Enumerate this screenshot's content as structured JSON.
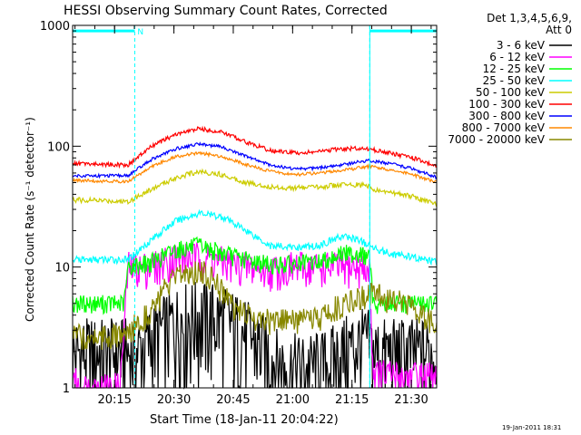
{
  "chart_data": {
    "type": "line",
    "title": "HESSI Observing Summary Count Rates, Corrected",
    "xlabel": "Start Time (18-Jan-11 20:04:22)",
    "ylabel": "Corrected Count Rate (s⁻¹ detector⁻¹)",
    "yscale": "log",
    "ylim": [
      1,
      1000
    ],
    "xlim_minutes": [
      0,
      92
    ],
    "x_ticks": [
      {
        "label": "20:15",
        "min": 10.6
      },
      {
        "label": "20:30",
        "min": 25.6
      },
      {
        "label": "20:45",
        "min": 40.6
      },
      {
        "label": "21:00",
        "min": 55.6
      },
      {
        "label": "21:15",
        "min": 70.6
      },
      {
        "label": "21:30",
        "min": 85.6
      }
    ],
    "y_ticks": [
      {
        "label": "1",
        "value": 1
      },
      {
        "label": "10",
        "value": 10
      },
      {
        "label": "100",
        "value": 100
      },
      {
        "label": "1000",
        "value": 1000
      }
    ],
    "legend_header": [
      "Det 1,3,4,5,6,9,",
      "Att 0"
    ],
    "legend_position": "right",
    "timestamp": "19-Jan-2011 18:31",
    "annotation": "N",
    "night_markers_minutes": [
      15.7,
      75.1
    ],
    "night_bars_minutes": [
      [
        0,
        15.7
      ],
      [
        75.1,
        92
      ]
    ],
    "night_bar_level": 900,
    "series": [
      {
        "name": "3 - 6 keV",
        "color": "#000000",
        "values": [
          [
            0,
            2.0
          ],
          [
            10,
            2.0
          ],
          [
            16,
            2.0
          ],
          [
            20,
            2.6
          ],
          [
            24,
            3.3
          ],
          [
            28,
            3.9
          ],
          [
            32,
            4.1
          ],
          [
            36,
            4.0
          ],
          [
            40,
            3.5
          ],
          [
            44,
            2.8
          ],
          [
            48,
            2.2
          ],
          [
            52,
            1.6
          ],
          [
            56,
            1.5
          ],
          [
            60,
            1.5
          ],
          [
            64,
            1.6
          ],
          [
            68,
            2.0
          ],
          [
            72,
            2.4
          ],
          [
            75,
            2.4
          ],
          [
            76,
            2.0
          ],
          [
            80,
            2.0
          ],
          [
            85,
            2.0
          ],
          [
            88,
            2.0
          ],
          [
            92,
            2.0
          ]
        ]
      },
      {
        "name": "6 - 12 keV",
        "color": "#ff00ff",
        "values": [
          [
            0,
            1.5
          ],
          [
            1,
            1.0
          ],
          [
            12,
            1.0
          ],
          [
            14,
            10.0
          ],
          [
            20,
            10.0
          ],
          [
            26,
            12.0
          ],
          [
            32,
            12.0
          ],
          [
            38,
            11.0
          ],
          [
            44,
            10.0
          ],
          [
            50,
            9.5
          ],
          [
            56,
            10.0
          ],
          [
            62,
            10.0
          ],
          [
            68,
            10.0
          ],
          [
            72,
            10.0
          ],
          [
            75,
            9.0
          ],
          [
            76,
            1.3
          ],
          [
            92,
            1.2
          ]
        ]
      },
      {
        "name": "12 - 25 keV",
        "color": "#00ff00",
        "values": [
          [
            0,
            5.0
          ],
          [
            13,
            5.0
          ],
          [
            14,
            10.0
          ],
          [
            20,
            11.0
          ],
          [
            26,
            14.0
          ],
          [
            32,
            15.0
          ],
          [
            38,
            13.0
          ],
          [
            44,
            11.5
          ],
          [
            50,
            10.5
          ],
          [
            56,
            10.5
          ],
          [
            62,
            11.0
          ],
          [
            68,
            13.0
          ],
          [
            72,
            13.0
          ],
          [
            75,
            12.0
          ],
          [
            76,
            5.0
          ],
          [
            88,
            5.0
          ],
          [
            92,
            5.0
          ]
        ]
      },
      {
        "name": "25 - 50 keV",
        "color": "#00ffff",
        "values": [
          [
            0,
            11.5
          ],
          [
            14,
            11.5
          ],
          [
            20,
            17.0
          ],
          [
            26,
            24.0
          ],
          [
            32,
            28.0
          ],
          [
            38,
            26.0
          ],
          [
            44,
            20.0
          ],
          [
            50,
            15.0
          ],
          [
            56,
            14.5
          ],
          [
            62,
            15.0
          ],
          [
            68,
            18.0
          ],
          [
            72,
            17.0
          ],
          [
            75,
            15.0
          ],
          [
            80,
            13.0
          ],
          [
            86,
            12.0
          ],
          [
            92,
            11.0
          ]
        ]
      },
      {
        "name": "50 - 100 keV",
        "color": "#cccc00",
        "values": [
          [
            0,
            36
          ],
          [
            14,
            35
          ],
          [
            20,
            44
          ],
          [
            26,
            55
          ],
          [
            32,
            62
          ],
          [
            38,
            58
          ],
          [
            44,
            50
          ],
          [
            50,
            46
          ],
          [
            56,
            45
          ],
          [
            62,
            46
          ],
          [
            68,
            48
          ],
          [
            72,
            48
          ],
          [
            75,
            47
          ],
          [
            76,
            43
          ],
          [
            84,
            40
          ],
          [
            92,
            33
          ]
        ]
      },
      {
        "name": "100 - 300 keV",
        "color": "#ff0000",
        "values": [
          [
            0,
            72
          ],
          [
            14,
            70
          ],
          [
            20,
            100
          ],
          [
            26,
            125
          ],
          [
            32,
            140
          ],
          [
            38,
            130
          ],
          [
            44,
            108
          ],
          [
            50,
            92
          ],
          [
            56,
            88
          ],
          [
            62,
            90
          ],
          [
            68,
            95
          ],
          [
            72,
            96
          ],
          [
            75,
            95
          ],
          [
            80,
            88
          ],
          [
            86,
            80
          ],
          [
            92,
            68
          ]
        ]
      },
      {
        "name": "300 - 800 keV",
        "color": "#0000ff",
        "values": [
          [
            0,
            57
          ],
          [
            14,
            57
          ],
          [
            20,
            78
          ],
          [
            26,
            95
          ],
          [
            32,
            105
          ],
          [
            38,
            98
          ],
          [
            44,
            82
          ],
          [
            50,
            70
          ],
          [
            56,
            65
          ],
          [
            62,
            66
          ],
          [
            68,
            70
          ],
          [
            72,
            74
          ],
          [
            75,
            76
          ],
          [
            80,
            72
          ],
          [
            86,
            65
          ],
          [
            92,
            55
          ]
        ]
      },
      {
        "name": "800 - 7000 keV",
        "color": "#ff8800",
        "values": [
          [
            0,
            52
          ],
          [
            14,
            51
          ],
          [
            20,
            68
          ],
          [
            26,
            82
          ],
          [
            32,
            88
          ],
          [
            38,
            82
          ],
          [
            44,
            70
          ],
          [
            50,
            62
          ],
          [
            56,
            58
          ],
          [
            62,
            60
          ],
          [
            68,
            63
          ],
          [
            72,
            66
          ],
          [
            75,
            68
          ],
          [
            80,
            64
          ],
          [
            86,
            58
          ],
          [
            92,
            50
          ]
        ]
      },
      {
        "name": "7000 - 20000 keV",
        "color": "#888800",
        "values": [
          [
            0,
            2.7
          ],
          [
            14,
            2.7
          ],
          [
            16,
            3.4
          ],
          [
            20,
            4.5
          ],
          [
            24,
            7.0
          ],
          [
            28,
            9.0
          ],
          [
            32,
            9.5
          ],
          [
            36,
            8.0
          ],
          [
            40,
            5.0
          ],
          [
            44,
            4.0
          ],
          [
            50,
            3.6
          ],
          [
            56,
            3.6
          ],
          [
            62,
            3.7
          ],
          [
            68,
            5.0
          ],
          [
            75,
            6.0
          ],
          [
            80,
            5.5
          ],
          [
            86,
            5.0
          ],
          [
            92,
            3.2
          ]
        ]
      }
    ]
  }
}
